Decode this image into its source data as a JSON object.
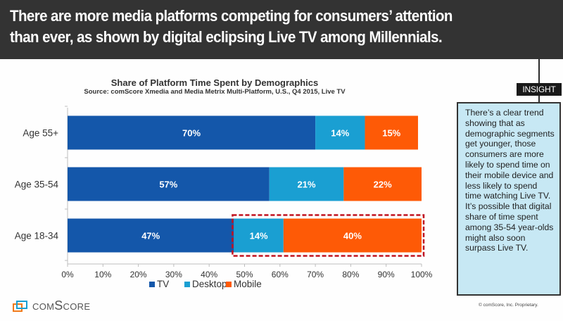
{
  "banner": {
    "headline_line1": "There are more media platforms competing for consumers’ attention",
    "headline_line2": "than ever, as shown by digital eclipsing Live TV among Millennials."
  },
  "insight": {
    "tag": "INSIGHT",
    "text": "There’s a clear trend showing that as demographic segments get younger, those consumers are more likely to spend time on their mobile device and less likely to spend time watching Live TV. It’s possible that digital share of time spent among 35-54 year-olds might also soon surpass Live TV."
  },
  "footer": {
    "logo_text": "comScore",
    "logo_icon": "comscore-logo-icon",
    "copyright": "© comScore, Inc. Proprietary."
  },
  "chart_data": {
    "type": "bar",
    "orientation": "horizontal",
    "stacked": true,
    "title": "Share of Platform Time Spent by Demographics",
    "subtitle": "Source: comScore Xmedia and Media Metrix Multi-Platform, U.S., Q4 2015, Live TV",
    "categories": [
      "Age 55+",
      "Age 35-54",
      "Age 18-34"
    ],
    "series": [
      {
        "name": "TV",
        "color": "#1457aa",
        "values": [
          70,
          57,
          47
        ],
        "labels": [
          "70%",
          "57%",
          "47%"
        ]
      },
      {
        "name": "Desktop",
        "color": "#1a9fd2",
        "values": [
          14,
          21,
          14
        ],
        "labels": [
          "14%",
          "21%",
          "14%"
        ]
      },
      {
        "name": "Mobile",
        "color": "#fe5a06",
        "values": [
          15,
          22,
          40
        ],
        "labels": [
          "15%",
          "22%",
          "40%"
        ]
      }
    ],
    "xlabel": "",
    "ylabel": "",
    "xlim": [
      0,
      100
    ],
    "x_ticks": [
      "0%",
      "10%",
      "20%",
      "30%",
      "40%",
      "50%",
      "60%",
      "70%",
      "80%",
      "90%",
      "100%"
    ],
    "grid": false,
    "legend": "bottom",
    "annotation": {
      "type": "dashed-highlight-box",
      "category": "Age 18-34",
      "series": [
        "Desktop",
        "Mobile"
      ],
      "color": "#c0121f"
    }
  }
}
